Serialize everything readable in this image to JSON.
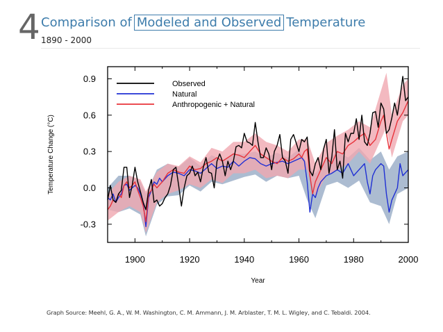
{
  "header": {
    "slide_number": "4",
    "title_prefix": "Comparison of",
    "title_boxed": "Modeled and Observed",
    "title_suffix": "Temperature",
    "date_range": "1890 - 2000"
  },
  "source_text": "Graph Source: Meehl, G. A., W. M. Washington, C. M. Ammann, J. M. Arblaster, T. M. L. Wigley, and C. Tebaldi. 2004.",
  "chart_data": {
    "type": "line",
    "xlabel": "Year",
    "ylabel": "Temperature Change (°C)",
    "xlim": [
      1890,
      2000
    ],
    "ylim": [
      -0.45,
      1.0
    ],
    "x_ticks": [
      1900,
      1920,
      1940,
      1960,
      1980,
      2000
    ],
    "x_tick_labels": [
      "1900",
      "1920",
      "1940",
      "1960",
      "1980",
      "2000"
    ],
    "y_ticks": [
      -0.3,
      0.0,
      0.3,
      0.6,
      0.9
    ],
    "y_tick_labels": [
      "-0.3",
      "0.0",
      "0.3",
      "0.6",
      "0.9"
    ],
    "grid": false,
    "legend_position": "top-left",
    "bands": [
      {
        "series": "Natural",
        "color": "#a8b8cf",
        "x": [
          1890,
          1894,
          1898,
          1902,
          1904,
          1908,
          1912,
          1916,
          1920,
          1924,
          1928,
          1932,
          1936,
          1940,
          1944,
          1948,
          1952,
          1956,
          1960,
          1963,
          1966,
          1970,
          1974,
          1978,
          1982,
          1986,
          1990,
          1993,
          1996,
          2000
        ],
        "upper": [
          0.0,
          0.1,
          0.1,
          0.05,
          -0.05,
          0.15,
          0.2,
          0.17,
          0.25,
          0.18,
          0.27,
          0.23,
          0.28,
          0.28,
          0.3,
          0.25,
          0.29,
          0.25,
          0.32,
          0.2,
          0.12,
          0.23,
          0.3,
          0.25,
          0.33,
          0.23,
          0.3,
          0.15,
          0.26,
          0.3
        ],
        "lower": [
          -0.18,
          -0.2,
          -0.17,
          -0.22,
          -0.4,
          -0.14,
          -0.07,
          -0.06,
          0.02,
          -0.03,
          0.05,
          0.03,
          0.06,
          0.09,
          0.11,
          0.05,
          0.1,
          0.08,
          0.1,
          -0.1,
          -0.25,
          0.02,
          0.05,
          0.0,
          0.06,
          -0.12,
          -0.15,
          -0.3,
          -0.05,
          0.0
        ]
      },
      {
        "series": "Anthropogenic + Natural",
        "color": "#f0a8b0",
        "x": [
          1890,
          1894,
          1898,
          1902,
          1904,
          1908,
          1912,
          1916,
          1920,
          1924,
          1928,
          1932,
          1936,
          1940,
          1944,
          1948,
          1952,
          1956,
          1960,
          1963,
          1966,
          1970,
          1974,
          1978,
          1982,
          1986,
          1990,
          1992,
          1994,
          1998,
          2000
        ],
        "upper": [
          -0.05,
          0.05,
          0.1,
          0.07,
          -0.03,
          0.13,
          0.2,
          0.18,
          0.26,
          0.21,
          0.33,
          0.3,
          0.38,
          0.38,
          0.45,
          0.38,
          0.35,
          0.3,
          0.4,
          0.4,
          0.2,
          0.37,
          0.43,
          0.48,
          0.55,
          0.5,
          0.8,
          0.95,
          0.6,
          0.85,
          0.9
        ],
        "lower": [
          -0.27,
          -0.2,
          -0.15,
          -0.2,
          -0.37,
          -0.12,
          -0.05,
          -0.02,
          0.03,
          0.0,
          0.07,
          0.04,
          0.12,
          0.12,
          0.15,
          0.08,
          0.1,
          0.08,
          0.15,
          0.15,
          -0.07,
          0.1,
          0.15,
          0.2,
          0.3,
          0.2,
          0.4,
          0.5,
          0.25,
          0.55,
          0.6
        ]
      }
    ],
    "series": [
      {
        "name": "Observed",
        "color": "#000000",
        "x": [
          1890,
          1891,
          1892,
          1893,
          1894,
          1895,
          1896,
          1897,
          1898,
          1899,
          1900,
          1901,
          1902,
          1903,
          1904,
          1905,
          1906,
          1907,
          1908,
          1909,
          1910,
          1911,
          1912,
          1913,
          1914,
          1915,
          1916,
          1917,
          1918,
          1919,
          1920,
          1921,
          1922,
          1923,
          1924,
          1925,
          1926,
          1927,
          1928,
          1929,
          1930,
          1931,
          1932,
          1933,
          1934,
          1935,
          1936,
          1937,
          1938,
          1939,
          1940,
          1941,
          1942,
          1943,
          1944,
          1945,
          1946,
          1947,
          1948,
          1949,
          1950,
          1951,
          1952,
          1953,
          1954,
          1955,
          1956,
          1957,
          1958,
          1959,
          1960,
          1961,
          1962,
          1963,
          1964,
          1965,
          1966,
          1967,
          1968,
          1969,
          1970,
          1971,
          1972,
          1973,
          1974,
          1975,
          1976,
          1977,
          1978,
          1979,
          1980,
          1981,
          1982,
          1983,
          1984,
          1985,
          1986,
          1987,
          1988,
          1989,
          1990,
          1991,
          1992,
          1993,
          1994,
          1995,
          1996,
          1997,
          1998,
          1999,
          2000
        ],
        "y": [
          -0.1,
          0.02,
          -0.1,
          -0.12,
          -0.05,
          -0.02,
          0.17,
          0.17,
          -0.08,
          0.02,
          0.17,
          0.05,
          -0.03,
          -0.12,
          -0.18,
          -0.02,
          0.07,
          -0.12,
          -0.1,
          -0.15,
          -0.13,
          -0.08,
          -0.05,
          0.02,
          0.15,
          0.17,
          0.02,
          -0.15,
          0.0,
          0.1,
          0.12,
          0.18,
          0.1,
          0.13,
          0.05,
          0.17,
          0.25,
          0.13,
          0.12,
          0.0,
          0.22,
          0.28,
          0.22,
          0.1,
          0.22,
          0.15,
          0.22,
          0.34,
          0.35,
          0.33,
          0.45,
          0.38,
          0.37,
          0.35,
          0.54,
          0.38,
          0.25,
          0.25,
          0.33,
          0.28,
          0.15,
          0.3,
          0.35,
          0.44,
          0.25,
          0.22,
          0.12,
          0.4,
          0.44,
          0.37,
          0.3,
          0.4,
          0.38,
          0.42,
          0.14,
          0.1,
          0.2,
          0.25,
          0.15,
          0.32,
          0.4,
          0.12,
          0.25,
          0.48,
          0.15,
          0.22,
          0.08,
          0.45,
          0.38,
          0.45,
          0.45,
          0.57,
          0.4,
          0.6,
          0.38,
          0.35,
          0.45,
          0.62,
          0.63,
          0.5,
          0.7,
          0.65,
          0.45,
          0.48,
          0.58,
          0.7,
          0.6,
          0.75,
          0.92,
          0.72,
          0.75
        ]
      },
      {
        "name": "Natural",
        "color": "#1f2fd4",
        "x": [
          1890,
          1891,
          1892,
          1893,
          1894,
          1895,
          1896,
          1897,
          1898,
          1899,
          1900,
          1901,
          1902,
          1903,
          1904,
          1905,
          1906,
          1907,
          1908,
          1909,
          1910,
          1912,
          1914,
          1916,
          1918,
          1920,
          1922,
          1924,
          1926,
          1928,
          1930,
          1932,
          1934,
          1936,
          1938,
          1940,
          1942,
          1944,
          1946,
          1948,
          1950,
          1952,
          1954,
          1956,
          1958,
          1960,
          1961,
          1962,
          1963,
          1964,
          1965,
          1966,
          1967,
          1968,
          1970,
          1972,
          1974,
          1976,
          1978,
          1980,
          1982,
          1984,
          1985,
          1986,
          1987,
          1988,
          1990,
          1991,
          1992,
          1993,
          1994,
          1996,
          1997,
          1998,
          2000
        ],
        "y": [
          -0.08,
          -0.1,
          -0.05,
          -0.12,
          -0.08,
          -0.05,
          0.02,
          0.03,
          -0.02,
          0.0,
          0.02,
          0.0,
          -0.05,
          -0.12,
          -0.32,
          -0.08,
          -0.02,
          0.05,
          0.03,
          0.08,
          0.05,
          0.1,
          0.13,
          0.12,
          0.1,
          0.15,
          0.14,
          0.12,
          0.16,
          0.2,
          0.16,
          0.18,
          0.17,
          0.22,
          0.18,
          0.22,
          0.25,
          0.24,
          0.2,
          0.18,
          0.2,
          0.21,
          0.22,
          0.2,
          0.22,
          0.24,
          0.25,
          0.22,
          0.05,
          -0.2,
          -0.05,
          -0.08,
          0.0,
          0.05,
          0.1,
          0.12,
          0.15,
          0.12,
          0.2,
          0.1,
          0.15,
          0.2,
          0.05,
          -0.05,
          0.1,
          0.15,
          0.2,
          0.18,
          -0.05,
          -0.2,
          -0.1,
          0.0,
          0.2,
          0.1,
          0.15
        ]
      },
      {
        "name": "Anthropogenic + Natural",
        "color": "#e8323a",
        "x": [
          1890,
          1891,
          1892,
          1893,
          1894,
          1895,
          1896,
          1897,
          1898,
          1899,
          1900,
          1901,
          1902,
          1903,
          1904,
          1905,
          1906,
          1907,
          1908,
          1910,
          1912,
          1914,
          1916,
          1918,
          1920,
          1922,
          1924,
          1926,
          1928,
          1930,
          1932,
          1934,
          1936,
          1938,
          1940,
          1942,
          1944,
          1946,
          1948,
          1950,
          1952,
          1954,
          1956,
          1958,
          1960,
          1961,
          1962,
          1963,
          1964,
          1965,
          1966,
          1968,
          1970,
          1972,
          1974,
          1976,
          1978,
          1980,
          1982,
          1984,
          1986,
          1988,
          1990,
          1991,
          1992,
          1993,
          1994,
          1996,
          1998,
          2000
        ],
        "y": [
          -0.18,
          -0.15,
          -0.1,
          -0.12,
          -0.05,
          -0.08,
          0.02,
          0.05,
          0.0,
          0.02,
          0.05,
          -0.02,
          -0.08,
          -0.15,
          -0.28,
          -0.05,
          -0.02,
          0.03,
          0.0,
          0.05,
          0.12,
          0.15,
          0.13,
          0.12,
          0.18,
          0.15,
          0.16,
          0.2,
          0.22,
          0.25,
          0.22,
          0.25,
          0.28,
          0.27,
          0.25,
          0.3,
          0.35,
          0.28,
          0.25,
          0.22,
          0.2,
          0.25,
          0.22,
          0.24,
          0.28,
          0.25,
          0.3,
          0.32,
          0.1,
          -0.05,
          0.05,
          0.15,
          0.25,
          0.2,
          0.3,
          0.28,
          0.35,
          0.38,
          0.42,
          0.45,
          0.35,
          0.4,
          0.55,
          0.6,
          0.45,
          0.32,
          0.4,
          0.55,
          0.62,
          0.72
        ]
      }
    ]
  }
}
